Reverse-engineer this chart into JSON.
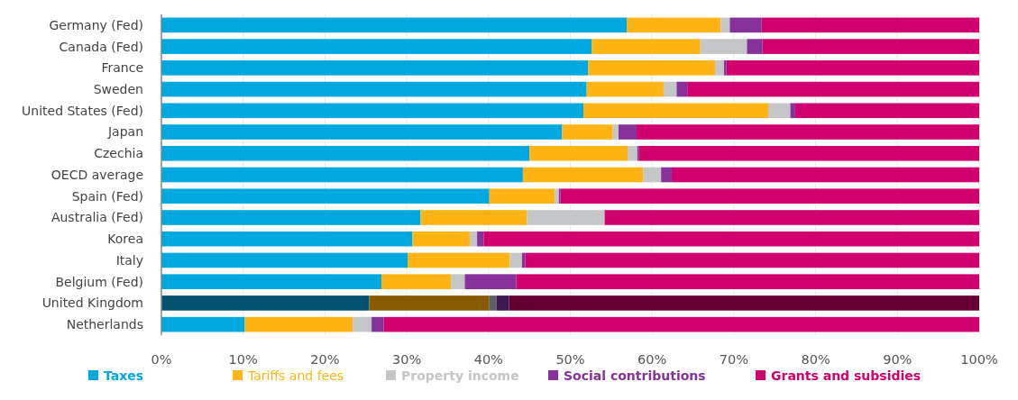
{
  "chart_data": {
    "type": "bar",
    "orientation": "horizontal",
    "stacked": true,
    "categories": [
      "Germany (Fed)",
      "Canada (Fed)",
      "France",
      "Sweden",
      "United States (Fed)",
      "Japan",
      "Czechia",
      "OECD average",
      "Spain (Fed)",
      "Australia (Fed)",
      "Korea",
      "Italy",
      "Belgium (Fed)",
      "United Kingdom",
      "Netherlands"
    ],
    "series": [
      {
        "name": "Taxes",
        "color": "#00a8e0",
        "colors": [
          "#00a8e0",
          "#00a8e0",
          "#00a8e0",
          "#00a8e0",
          "#00a8e0",
          "#00a8e0",
          "#00a8e0",
          "#00a8e0",
          "#00a8e0",
          "#00a8e0",
          "#00a8e0",
          "#00a8e0",
          "#00a8e0",
          "#00526f",
          "#00a8e0"
        ],
        "values": [
          56.9,
          52.6,
          52.2,
          52.0,
          51.6,
          49.0,
          45.0,
          44.2,
          40.1,
          31.7,
          30.7,
          30.1,
          26.9,
          25.4,
          10.2
        ]
      },
      {
        "name": "Tariffs and fees",
        "color": "#fdb414",
        "colors": [
          "#fdb414",
          "#fdb414",
          "#fdb414",
          "#fdb414",
          "#fdb414",
          "#fdb414",
          "#fdb414",
          "#fdb414",
          "#fdb414",
          "#fdb414",
          "#fdb414",
          "#fdb414",
          "#fdb414",
          "#875b00",
          "#fdb414"
        ],
        "values": [
          11.5,
          13.3,
          15.5,
          9.4,
          22.6,
          6.2,
          12.0,
          14.7,
          8.0,
          13.0,
          7.0,
          12.5,
          8.5,
          14.7,
          13.2
        ]
      },
      {
        "name": "Property income",
        "color": "#c4c6c8",
        "colors": [
          "#c4c6c8",
          "#c4c6c8",
          "#c4c6c8",
          "#c4c6c8",
          "#c4c6c8",
          "#c4c6c8",
          "#c4c6c8",
          "#c4c6c8",
          "#c4c6c8",
          "#c4c6c8",
          "#c4c6c8",
          "#c4c6c8",
          "#c4c6c8",
          "#5a6068",
          "#c4c6c8"
        ],
        "values": [
          1.1,
          5.7,
          1.1,
          1.6,
          2.7,
          0.7,
          1.2,
          2.2,
          0.5,
          9.5,
          0.9,
          1.5,
          1.7,
          0.9,
          2.3
        ]
      },
      {
        "name": "Social contributions",
        "color": "#87329a",
        "colors": [
          "#87329a",
          "#87329a",
          "#87329a",
          "#87329a",
          "#87329a",
          "#87329a",
          "#87329a",
          "#87329a",
          "#87329a",
          "#87329a",
          "#87329a",
          "#87329a",
          "#87329a",
          "#3e1850",
          "#87329a"
        ],
        "values": [
          3.9,
          1.9,
          0.3,
          1.3,
          0.6,
          2.2,
          0.2,
          1.3,
          0.2,
          0,
          0.8,
          0.4,
          6.3,
          1.5,
          1.5
        ]
      },
      {
        "name": "Grants and subsidies",
        "color": "#d0006f",
        "colors": [
          "#d0006f",
          "#d0006f",
          "#d0006f",
          "#d0006f",
          "#d0006f",
          "#d0006f",
          "#d0006f",
          "#d0006f",
          "#d0006f",
          "#d0006f",
          "#d0006f",
          "#d0006f",
          "#d0006f",
          "#660033",
          "#d0006f"
        ],
        "values": [
          26.6,
          26.5,
          30.9,
          35.7,
          22.5,
          41.9,
          41.6,
          37.6,
          51.2,
          45.8,
          60.6,
          55.5,
          56.6,
          57.5,
          72.8
        ]
      }
    ],
    "xlim": [
      0,
      100
    ],
    "xticks": [
      {
        "value": 0,
        "label": "0%"
      },
      {
        "value": 10,
        "label": "10%"
      },
      {
        "value": 20,
        "label": "20%"
      },
      {
        "value": 30,
        "label": "30%"
      },
      {
        "value": 40,
        "label": "40%"
      },
      {
        "value": 50,
        "label": "50%"
      },
      {
        "value": 60,
        "label": "60%"
      },
      {
        "value": 70,
        "label": "70%"
      },
      {
        "value": 80,
        "label": "80%"
      },
      {
        "value": 90,
        "label": "90%"
      },
      {
        "value": 100,
        "label": "100%"
      }
    ],
    "grid": "x",
    "legend": "bottom"
  }
}
